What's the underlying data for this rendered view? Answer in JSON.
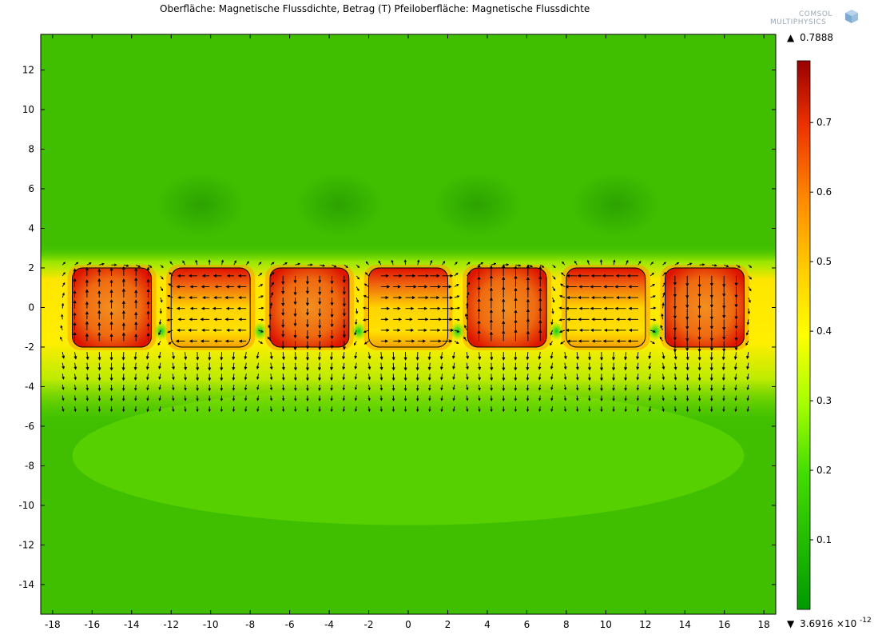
{
  "title": "Oberfläche: Magnetische Flussdichte, Betrag (T)  Pfeiloberfläche: Magnetische Flussdichte",
  "logo": {
    "line1": "COMSOL",
    "line2": "MULTIPHYSICS",
    "icon": "comsol-cube-icon"
  },
  "chart_data": {
    "type": "heatmap",
    "title": "Oberfläche: Magnetische Flussdichte, Betrag (T)  Pfeiloberfläche: Magnetische Flussdichte",
    "xlabel": "",
    "ylabel": "",
    "xlim": [
      -18.6,
      18.6
    ],
    "ylim": [
      -15.5,
      13.8
    ],
    "xticks": [
      -18,
      -16,
      -14,
      -12,
      -10,
      -8,
      -6,
      -4,
      -2,
      0,
      2,
      4,
      6,
      8,
      10,
      12,
      14,
      16,
      18
    ],
    "yticks": [
      12,
      10,
      8,
      6,
      4,
      2,
      0,
      -2,
      -4,
      -6,
      -8,
      -10,
      -12,
      -14
    ],
    "colorbar": {
      "max_label": "0.7888",
      "min_label_mantissa": "3.6916",
      "min_label_exponent": "-12",
      "min": 0,
      "max": 0.7888,
      "ticks": [
        0.1,
        0.2,
        0.3,
        0.4,
        0.5,
        0.6,
        0.7
      ],
      "colors": [
        "#009900",
        "#33cc00",
        "#66ee00",
        "#ccff00",
        "#ffff00",
        "#ffcc00",
        "#ff8800",
        "#ee4400",
        "#dd1100",
        "#990000"
      ]
    },
    "magnets": [
      {
        "x_center": -15,
        "y_center": 0,
        "width": 4,
        "height": 4,
        "dominant": "vertical"
      },
      {
        "x_center": -10,
        "y_center": 0,
        "width": 4,
        "height": 4,
        "dominant": "horizontal"
      },
      {
        "x_center": -5,
        "y_center": 0,
        "width": 4,
        "height": 4,
        "dominant": "vertical"
      },
      {
        "x_center": 0,
        "y_center": 0,
        "width": 4,
        "height": 4,
        "dominant": "horizontal"
      },
      {
        "x_center": 5,
        "y_center": 0,
        "width": 4,
        "height": 4,
        "dominant": "vertical"
      },
      {
        "x_center": 10,
        "y_center": 0,
        "width": 4,
        "height": 4,
        "dominant": "horizontal"
      },
      {
        "x_center": 15,
        "y_center": 0,
        "width": 4,
        "height": 4,
        "dominant": "vertical"
      }
    ],
    "field_layer": {
      "y_range": [
        -5.5,
        2.5
      ],
      "background_value": 0.25,
      "far_field_value": 0.22
    },
    "arrows": {
      "x_range": [
        -17.5,
        17.5
      ],
      "y_range": [
        -5.0,
        2.5
      ]
    }
  }
}
